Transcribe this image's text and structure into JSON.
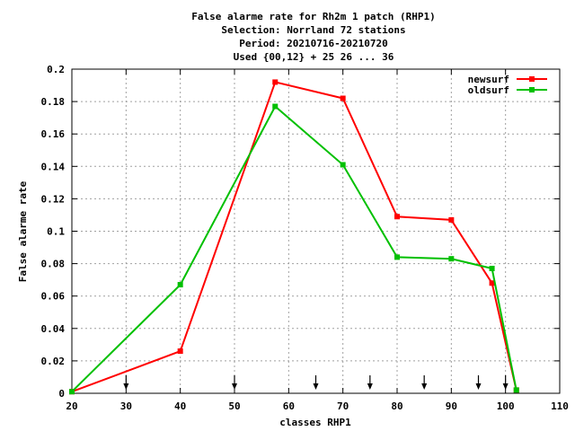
{
  "chart_data": {
    "type": "line",
    "title_lines": [
      "False alarme rate  for Rh2m 1 patch (RHP1)",
      "Selection: Norrland     72 stations",
      "Period: 20210716-20210720",
      "Used {00,12} + 25 26 ... 36"
    ],
    "xlabel": "classes RHP1",
    "ylabel": "False alarme rate",
    "xlim": [
      20,
      110
    ],
    "ylim": [
      0,
      0.2
    ],
    "x_ticks": [
      "20",
      "30",
      "40",
      "50",
      "60",
      "70",
      "80",
      "90",
      "100",
      "110"
    ],
    "y_ticks": [
      "0",
      "0.02",
      "0.04",
      "0.06",
      "0.08",
      "0.1",
      "0.12",
      "0.14",
      "0.16",
      "0.18",
      "0.2"
    ],
    "grid": true,
    "legend_position": "top-right",
    "arrow_markers_x": [
      30,
      50,
      65,
      75,
      85,
      95,
      100
    ],
    "series": [
      {
        "name": "newsurf",
        "color": "#ff0000",
        "x": [
          20,
          40,
          57.5,
          70,
          80,
          90,
          97.5,
          102
        ],
        "y": [
          0.001,
          0.026,
          0.192,
          0.182,
          0.109,
          0.107,
          0.068,
          0.002
        ]
      },
      {
        "name": "oldsurf",
        "color": "#00c000",
        "x": [
          20,
          40,
          57.5,
          70,
          80,
          90,
          97.5,
          102
        ],
        "y": [
          0.001,
          0.067,
          0.177,
          0.141,
          0.084,
          0.083,
          0.077,
          0.002
        ]
      }
    ]
  }
}
